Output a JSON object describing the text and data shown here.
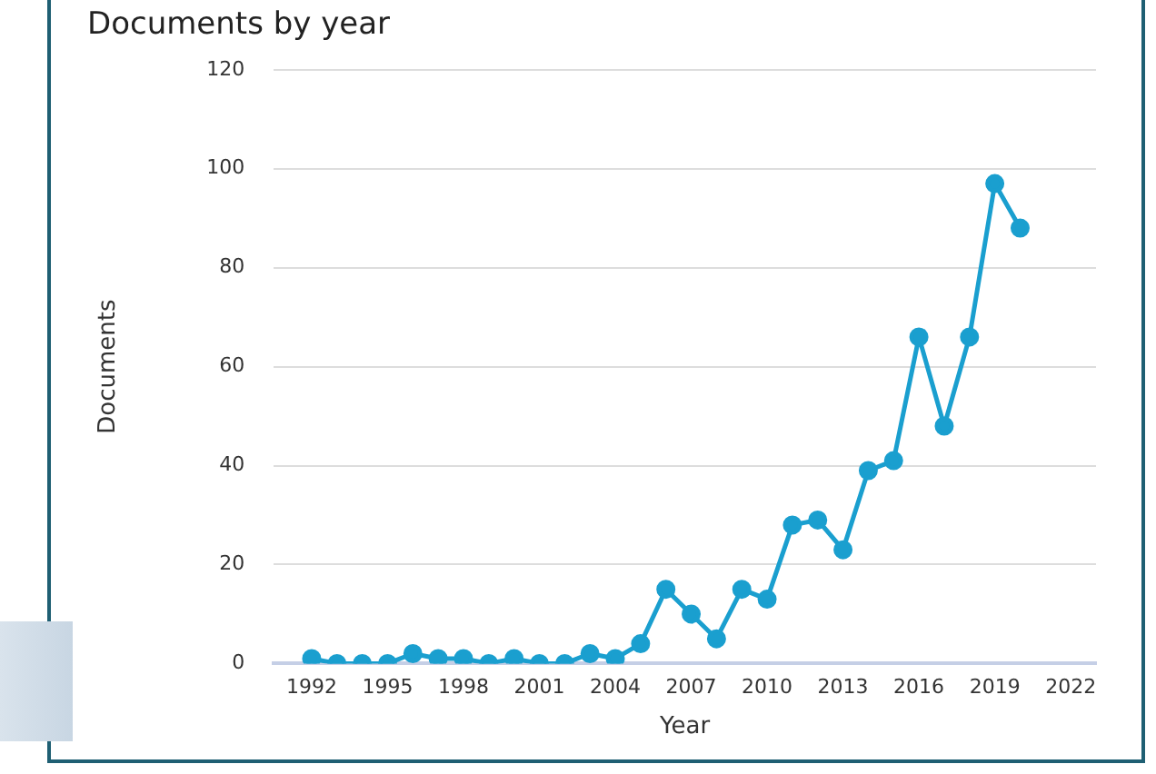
{
  "chart_data": {
    "type": "line",
    "title": "Documents by year",
    "xlabel": "Year",
    "ylabel": "Documents",
    "x": [
      1992,
      1993,
      1994,
      1995,
      1996,
      1997,
      1998,
      1999,
      2000,
      2001,
      2002,
      2003,
      2004,
      2005,
      2006,
      2007,
      2008,
      2009,
      2010,
      2011,
      2012,
      2013,
      2014,
      2015,
      2016,
      2017,
      2018,
      2019,
      2020
    ],
    "series": [
      {
        "color": "#1a9fcf",
        "values": [
          1,
          0,
          0,
          0,
          2,
          1,
          1,
          0,
          1,
          0,
          0,
          2,
          1,
          4,
          15,
          10,
          5,
          15,
          13,
          28,
          29,
          23,
          39,
          41,
          66,
          48,
          66,
          97,
          88
        ]
      }
    ],
    "xlim": [
      1990.5,
      2023
    ],
    "xticks": [
      1992,
      1995,
      1998,
      2001,
      2004,
      2007,
      2010,
      2013,
      2016,
      2019,
      2022
    ],
    "ylim": [
      0,
      120
    ],
    "yticks": [
      0,
      20,
      40,
      60,
      80,
      100,
      120
    ],
    "grid": "y",
    "legend": false,
    "marker": "circle",
    "line_style": "solid"
  }
}
